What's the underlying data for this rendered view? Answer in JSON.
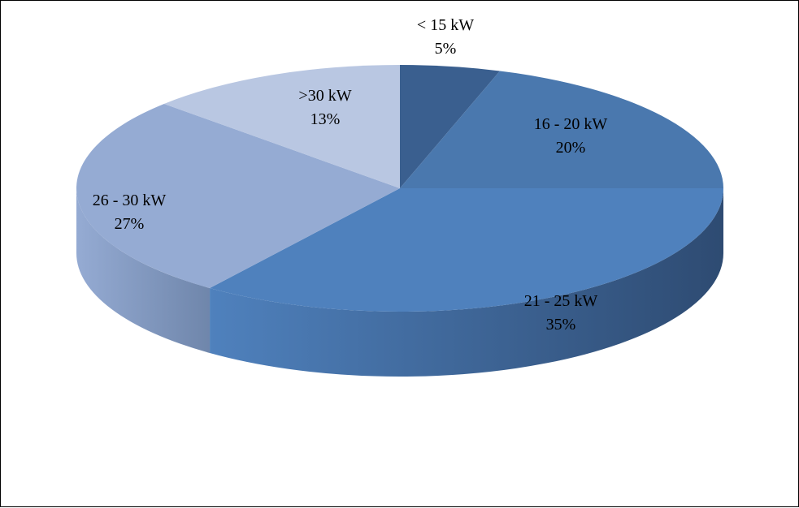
{
  "chart_data": {
    "type": "pie",
    "style": "3d-tilted",
    "title": "",
    "legend": "none",
    "categories": [
      "< 15 kW",
      "16 - 20 kW",
      "21 - 25 kW",
      "26 - 30 kW",
      ">30 kW"
    ],
    "values": [
      5,
      20,
      35,
      27,
      13
    ],
    "labels": [
      {
        "name": "< 15 kW",
        "pct": "5%"
      },
      {
        "name": "16 - 20 kW",
        "pct": "20%"
      },
      {
        "name": "21 - 25 kW",
        "pct": "35%"
      },
      {
        "name": "26 - 30 kW",
        "pct": "27%"
      },
      {
        "name": ">30 kW",
        "pct": "13%"
      }
    ],
    "colors": [
      "#3A5F8F",
      "#4A78AE",
      "#4F81BD",
      "#95ABD3",
      "#B9C7E2"
    ],
    "side_colors": [
      "#2A4468",
      "#2E4A70",
      "#2E4B72",
      "#6F86AB",
      "#8C9CBD"
    ]
  }
}
